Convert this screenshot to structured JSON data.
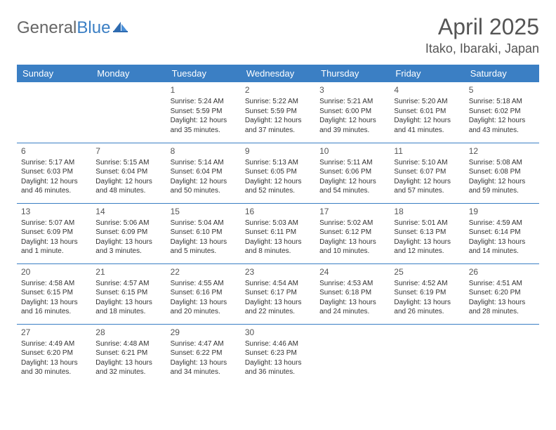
{
  "brand": {
    "name_gray": "General",
    "name_blue": "Blue"
  },
  "title": "April 2025",
  "location": "Itako, Ibaraki, Japan",
  "colors": {
    "header_bg": "#3b7fc4",
    "header_text": "#ffffff",
    "border": "#3b7fc4",
    "body_text": "#333333",
    "title_text": "#555555",
    "page_bg": "#ffffff"
  },
  "typography": {
    "title_fontsize": 32,
    "location_fontsize": 18,
    "dayheader_fontsize": 13,
    "daynum_fontsize": 12,
    "cell_fontsize": 10
  },
  "layout": {
    "columns": 7,
    "rows": 5
  },
  "day_headers": [
    "Sunday",
    "Monday",
    "Tuesday",
    "Wednesday",
    "Thursday",
    "Friday",
    "Saturday"
  ],
  "weeks": [
    [
      null,
      null,
      {
        "n": "1",
        "sunrise": "Sunrise: 5:24 AM",
        "sunset": "Sunset: 5:59 PM",
        "daylight": "Daylight: 12 hours and 35 minutes."
      },
      {
        "n": "2",
        "sunrise": "Sunrise: 5:22 AM",
        "sunset": "Sunset: 5:59 PM",
        "daylight": "Daylight: 12 hours and 37 minutes."
      },
      {
        "n": "3",
        "sunrise": "Sunrise: 5:21 AM",
        "sunset": "Sunset: 6:00 PM",
        "daylight": "Daylight: 12 hours and 39 minutes."
      },
      {
        "n": "4",
        "sunrise": "Sunrise: 5:20 AM",
        "sunset": "Sunset: 6:01 PM",
        "daylight": "Daylight: 12 hours and 41 minutes."
      },
      {
        "n": "5",
        "sunrise": "Sunrise: 5:18 AM",
        "sunset": "Sunset: 6:02 PM",
        "daylight": "Daylight: 12 hours and 43 minutes."
      }
    ],
    [
      {
        "n": "6",
        "sunrise": "Sunrise: 5:17 AM",
        "sunset": "Sunset: 6:03 PM",
        "daylight": "Daylight: 12 hours and 46 minutes."
      },
      {
        "n": "7",
        "sunrise": "Sunrise: 5:15 AM",
        "sunset": "Sunset: 6:04 PM",
        "daylight": "Daylight: 12 hours and 48 minutes."
      },
      {
        "n": "8",
        "sunrise": "Sunrise: 5:14 AM",
        "sunset": "Sunset: 6:04 PM",
        "daylight": "Daylight: 12 hours and 50 minutes."
      },
      {
        "n": "9",
        "sunrise": "Sunrise: 5:13 AM",
        "sunset": "Sunset: 6:05 PM",
        "daylight": "Daylight: 12 hours and 52 minutes."
      },
      {
        "n": "10",
        "sunrise": "Sunrise: 5:11 AM",
        "sunset": "Sunset: 6:06 PM",
        "daylight": "Daylight: 12 hours and 54 minutes."
      },
      {
        "n": "11",
        "sunrise": "Sunrise: 5:10 AM",
        "sunset": "Sunset: 6:07 PM",
        "daylight": "Daylight: 12 hours and 57 minutes."
      },
      {
        "n": "12",
        "sunrise": "Sunrise: 5:08 AM",
        "sunset": "Sunset: 6:08 PM",
        "daylight": "Daylight: 12 hours and 59 minutes."
      }
    ],
    [
      {
        "n": "13",
        "sunrise": "Sunrise: 5:07 AM",
        "sunset": "Sunset: 6:09 PM",
        "daylight": "Daylight: 13 hours and 1 minute."
      },
      {
        "n": "14",
        "sunrise": "Sunrise: 5:06 AM",
        "sunset": "Sunset: 6:09 PM",
        "daylight": "Daylight: 13 hours and 3 minutes."
      },
      {
        "n": "15",
        "sunrise": "Sunrise: 5:04 AM",
        "sunset": "Sunset: 6:10 PM",
        "daylight": "Daylight: 13 hours and 5 minutes."
      },
      {
        "n": "16",
        "sunrise": "Sunrise: 5:03 AM",
        "sunset": "Sunset: 6:11 PM",
        "daylight": "Daylight: 13 hours and 8 minutes."
      },
      {
        "n": "17",
        "sunrise": "Sunrise: 5:02 AM",
        "sunset": "Sunset: 6:12 PM",
        "daylight": "Daylight: 13 hours and 10 minutes."
      },
      {
        "n": "18",
        "sunrise": "Sunrise: 5:01 AM",
        "sunset": "Sunset: 6:13 PM",
        "daylight": "Daylight: 13 hours and 12 minutes."
      },
      {
        "n": "19",
        "sunrise": "Sunrise: 4:59 AM",
        "sunset": "Sunset: 6:14 PM",
        "daylight": "Daylight: 13 hours and 14 minutes."
      }
    ],
    [
      {
        "n": "20",
        "sunrise": "Sunrise: 4:58 AM",
        "sunset": "Sunset: 6:15 PM",
        "daylight": "Daylight: 13 hours and 16 minutes."
      },
      {
        "n": "21",
        "sunrise": "Sunrise: 4:57 AM",
        "sunset": "Sunset: 6:15 PM",
        "daylight": "Daylight: 13 hours and 18 minutes."
      },
      {
        "n": "22",
        "sunrise": "Sunrise: 4:55 AM",
        "sunset": "Sunset: 6:16 PM",
        "daylight": "Daylight: 13 hours and 20 minutes."
      },
      {
        "n": "23",
        "sunrise": "Sunrise: 4:54 AM",
        "sunset": "Sunset: 6:17 PM",
        "daylight": "Daylight: 13 hours and 22 minutes."
      },
      {
        "n": "24",
        "sunrise": "Sunrise: 4:53 AM",
        "sunset": "Sunset: 6:18 PM",
        "daylight": "Daylight: 13 hours and 24 minutes."
      },
      {
        "n": "25",
        "sunrise": "Sunrise: 4:52 AM",
        "sunset": "Sunset: 6:19 PM",
        "daylight": "Daylight: 13 hours and 26 minutes."
      },
      {
        "n": "26",
        "sunrise": "Sunrise: 4:51 AM",
        "sunset": "Sunset: 6:20 PM",
        "daylight": "Daylight: 13 hours and 28 minutes."
      }
    ],
    [
      {
        "n": "27",
        "sunrise": "Sunrise: 4:49 AM",
        "sunset": "Sunset: 6:20 PM",
        "daylight": "Daylight: 13 hours and 30 minutes."
      },
      {
        "n": "28",
        "sunrise": "Sunrise: 4:48 AM",
        "sunset": "Sunset: 6:21 PM",
        "daylight": "Daylight: 13 hours and 32 minutes."
      },
      {
        "n": "29",
        "sunrise": "Sunrise: 4:47 AM",
        "sunset": "Sunset: 6:22 PM",
        "daylight": "Daylight: 13 hours and 34 minutes."
      },
      {
        "n": "30",
        "sunrise": "Sunrise: 4:46 AM",
        "sunset": "Sunset: 6:23 PM",
        "daylight": "Daylight: 13 hours and 36 minutes."
      },
      null,
      null,
      null
    ]
  ]
}
